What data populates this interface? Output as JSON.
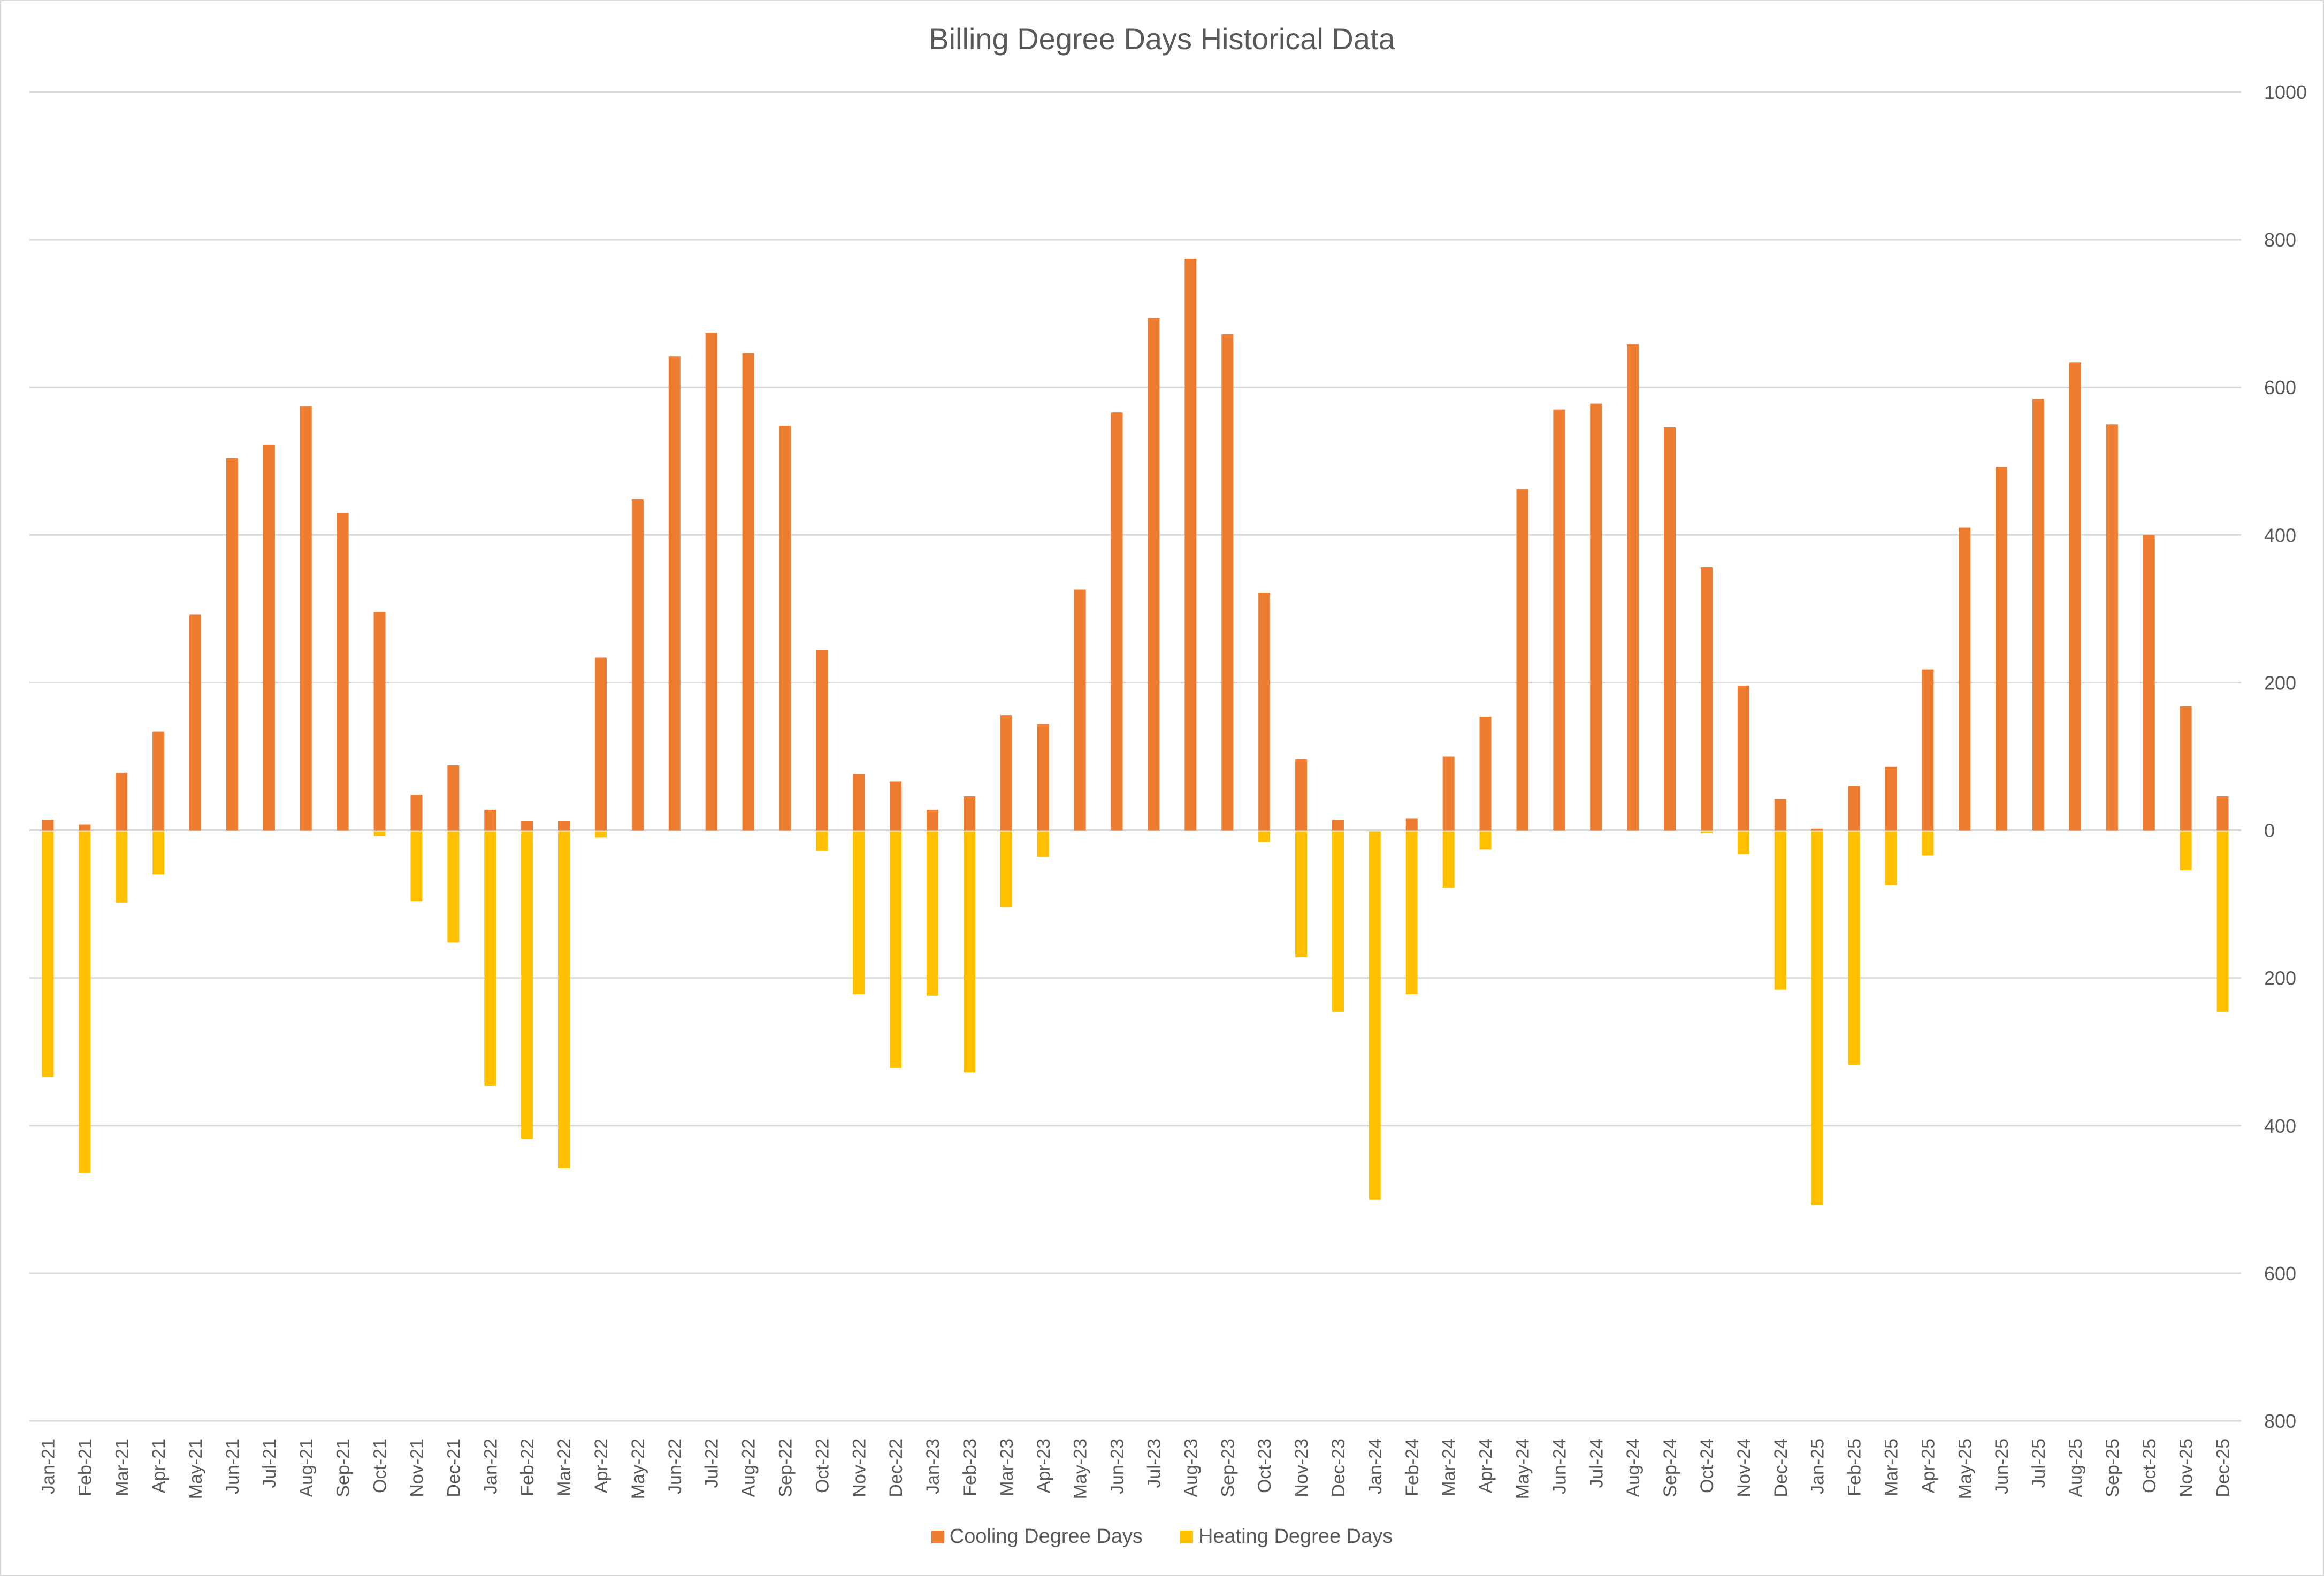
{
  "chart_data": {
    "type": "bar",
    "title": "Billing Degree Days Historical Data",
    "xlabel": "",
    "ylabel": "",
    "ylim": [
      -800,
      1000
    ],
    "y_ticks": [
      1000,
      800,
      600,
      400,
      200,
      0,
      -200,
      -400,
      -600,
      -800
    ],
    "y_tick_labels": [
      "1000",
      "800",
      "600",
      "400",
      "200",
      "0",
      "200",
      "400",
      "600",
      "800"
    ],
    "y_axis_side": "right",
    "grid": true,
    "legend": "bottom",
    "note_heating_plotted_downward": true,
    "categories": [
      "Jan-21",
      "Feb-21",
      "Mar-21",
      "Apr-21",
      "May-21",
      "Jun-21",
      "Jul-21",
      "Aug-21",
      "Sep-21",
      "Oct-21",
      "Nov-21",
      "Dec-21",
      "Jan-22",
      "Feb-22",
      "Mar-22",
      "Apr-22",
      "May-22",
      "Jun-22",
      "Jul-22",
      "Aug-22",
      "Sep-22",
      "Oct-22",
      "Nov-22",
      "Dec-22",
      "Jan-23",
      "Feb-23",
      "Mar-23",
      "Apr-23",
      "May-23",
      "Jun-23",
      "Jul-23",
      "Aug-23",
      "Sep-23",
      "Oct-23",
      "Nov-23",
      "Dec-23",
      "Jan-24",
      "Feb-24",
      "Mar-24",
      "Apr-24",
      "May-24",
      "Jun-24",
      "Jul-24",
      "Aug-24",
      "Sep-24",
      "Oct-24",
      "Nov-24",
      "Dec-24",
      "Jan-25",
      "Feb-25",
      "Mar-25",
      "Apr-25",
      "May-25",
      "Jun-25",
      "Jul-25",
      "Aug-25",
      "Sep-25",
      "Oct-25",
      "Nov-25",
      "Dec-25"
    ],
    "series": [
      {
        "name": "Cooling Degree Days",
        "color": "#ED7D31",
        "values": [
          14,
          8,
          78,
          134,
          292,
          504,
          522,
          574,
          430,
          296,
          48,
          88,
          28,
          12,
          12,
          234,
          448,
          642,
          674,
          646,
          548,
          244,
          76,
          66,
          28,
          46,
          156,
          144,
          326,
          566,
          694,
          774,
          672,
          322,
          96,
          14,
          0,
          16,
          100,
          154,
          462,
          570,
          578,
          658,
          546,
          356,
          196,
          42,
          2,
          60,
          86,
          218,
          410,
          492,
          584,
          634,
          550,
          400,
          168,
          46
        ]
      },
      {
        "name": "Heating Degree Days",
        "color": "#FFC000",
        "values": [
          334,
          464,
          98,
          60,
          0,
          0,
          0,
          0,
          0,
          8,
          96,
          152,
          346,
          418,
          458,
          10,
          0,
          0,
          0,
          0,
          0,
          28,
          222,
          322,
          224,
          328,
          104,
          36,
          0,
          0,
          0,
          0,
          0,
          16,
          172,
          246,
          500,
          222,
          78,
          26,
          0,
          0,
          0,
          0,
          0,
          4,
          32,
          216,
          508,
          318,
          74,
          34,
          0,
          0,
          0,
          0,
          0,
          0,
          54,
          246
        ]
      }
    ]
  }
}
